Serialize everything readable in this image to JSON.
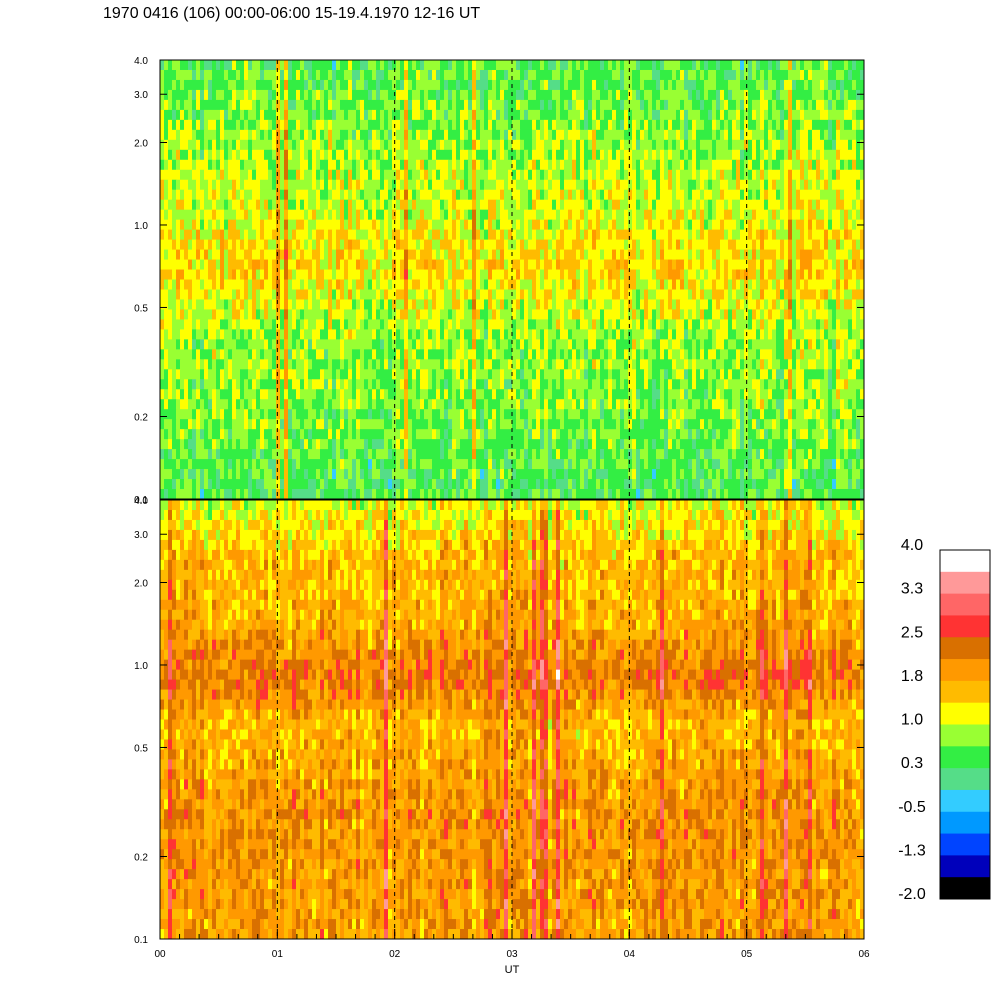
{
  "title": "1970 0416 (106) 00:00-06:00 15-19.4.1970  12-16 UT",
  "chart_data": [
    {
      "type": "heatmap",
      "panel": "upper",
      "x_range": [
        0,
        6
      ],
      "y_scale": "log",
      "ylim": [
        0.1,
        4.0
      ],
      "y_ticks": [
        "0.1",
        "0.2",
        "0.5",
        "1.0",
        "2.0",
        "3.0",
        "4.0"
      ],
      "y_tick_values": [
        0.1,
        0.2,
        0.5,
        1.0,
        2.0,
        3.0,
        4.0
      ],
      "band_levels": [
        {
          "y": 0.12,
          "value": 0.4
        },
        {
          "y": 0.2,
          "value": 0.7
        },
        {
          "y": 0.4,
          "value": 0.8
        },
        {
          "y": 0.7,
          "value": 1.4
        },
        {
          "y": 1.2,
          "value": 1.0
        },
        {
          "y": 2.0,
          "value": 0.8
        },
        {
          "y": 3.5,
          "value": 0.5
        }
      ],
      "dashed_x": [
        1,
        2,
        3,
        4,
        5
      ]
    },
    {
      "type": "heatmap",
      "panel": "lower",
      "x_range": [
        0,
        6
      ],
      "y_scale": "log",
      "ylim": [
        0.1,
        4.0
      ],
      "y_ticks": [
        "0.1",
        "0.2",
        "0.5",
        "1.0",
        "2.0",
        "3.0",
        "4.0"
      ],
      "y_tick_values": [
        0.1,
        0.2,
        0.5,
        1.0,
        2.0,
        3.0,
        4.0
      ],
      "band_levels": [
        {
          "y": 0.12,
          "value": 1.9
        },
        {
          "y": 0.3,
          "value": 2.0
        },
        {
          "y": 0.6,
          "value": 1.6
        },
        {
          "y": 0.9,
          "value": 2.3
        },
        {
          "y": 1.5,
          "value": 1.7
        },
        {
          "y": 2.5,
          "value": 1.6
        },
        {
          "y": 3.8,
          "value": 1.1
        }
      ],
      "dashed_x": [
        1,
        2,
        3,
        4,
        5
      ],
      "xlabel": "UT",
      "x_ticks": [
        "00",
        "01",
        "02",
        "03",
        "04",
        "05",
        "06"
      ],
      "x_tick_values": [
        0,
        1,
        2,
        3,
        4,
        5,
        6
      ]
    }
  ],
  "colorbar": {
    "labels": [
      "4.0",
      "3.3",
      "2.5",
      "1.8",
      "1.0",
      "0.3",
      "-0.5",
      "-1.3",
      "-2.0"
    ],
    "label_values": [
      4.0,
      3.3,
      2.5,
      1.8,
      1.0,
      0.3,
      -0.5,
      -1.3,
      -2.0
    ],
    "range": [
      -2.0,
      4.0
    ],
    "colors_top_to_bottom": [
      "#ffffff",
      "#ff9999",
      "#ff6666",
      "#ff3333",
      "#d97000",
      "#ff9900",
      "#ffbb00",
      "#ffff00",
      "#99ff33",
      "#33ee44",
      "#55dd88",
      "#33ccff",
      "#0099ff",
      "#0044ff",
      "#0000bb",
      "#000000"
    ]
  }
}
